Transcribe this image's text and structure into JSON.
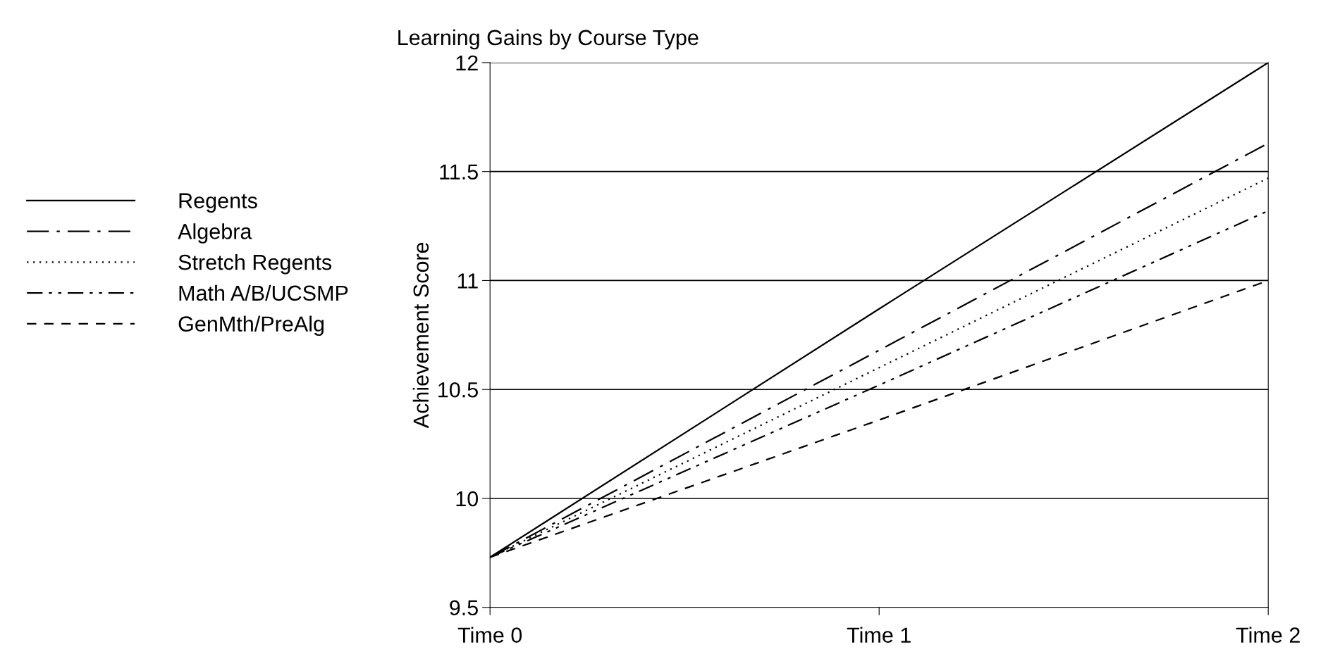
{
  "chart_data": {
    "type": "line",
    "title": "Learning Gains by Course Type",
    "ylabel": "Achievement Score",
    "categories": [
      "Time 0",
      "Time 1",
      "Time 2"
    ],
    "series": [
      {
        "name": "Regents",
        "color": "#000000",
        "line_style": "solid",
        "values": [
          9.73,
          10.87,
          12.0
        ]
      },
      {
        "name": "Algebra",
        "color": "#000000",
        "line_style": "longdashdot",
        "values": [
          9.73,
          10.68,
          11.63
        ]
      },
      {
        "name": "Stretch Regents",
        "color": "#000000",
        "line_style": "dotted",
        "values": [
          9.73,
          10.6,
          11.47
        ]
      },
      {
        "name": "Math A/B/UCSMP",
        "color": "#000000",
        "line_style": "dashdotdot",
        "values": [
          9.73,
          10.52,
          11.32
        ]
      },
      {
        "name": "GenMth/PreAlg",
        "color": "#000000",
        "line_style": "dashed",
        "values": [
          9.73,
          10.36,
          11.0
        ]
      }
    ],
    "ylim": [
      9.5,
      12
    ],
    "yticks": [
      9.5,
      10,
      10.5,
      11,
      11.5,
      12
    ],
    "grid": "y",
    "legend": "left",
    "marker": "none"
  }
}
